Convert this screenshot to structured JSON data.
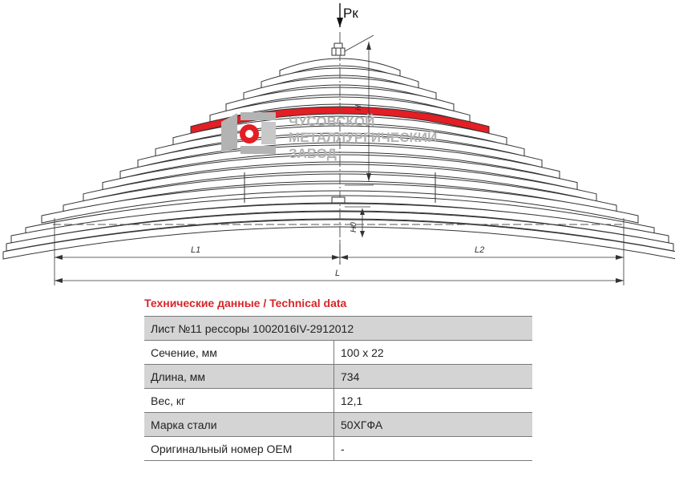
{
  "drawing": {
    "load_label": "Рк",
    "dimension_labels": {
      "l1": "L1",
      "l2": "L2",
      "l": "L",
      "h": "H",
      "h0": "H0"
    },
    "logo": {
      "line1": "ЧУСОВСКОЙ",
      "line2": "МЕТАЛЛУРГИЧЕСКИЙ",
      "line3": "ЗАВОД",
      "icon": "chmz-logo-icon"
    },
    "colors": {
      "highlight_leaf": "#e31e24",
      "line": "#333333",
      "logo_gray": "#b3b3b3",
      "logo_red": "#e31e24"
    }
  },
  "table": {
    "title": "Технические данные / Technical data",
    "header": "Лист №11 рессоры 1002016IV-2912012",
    "rows": [
      {
        "label": "Сечение, мм",
        "value": "100 x 22"
      },
      {
        "label": "Длина, мм",
        "value": "734"
      },
      {
        "label": "Вес, кг",
        "value": "12,1"
      },
      {
        "label": "Марка стали",
        "value": "50ХГФА"
      },
      {
        "label": "Оригинальный номер ОЕМ",
        "value": "-"
      }
    ],
    "colors": {
      "title": "#d7262a",
      "shade": "#d4d4d4"
    }
  }
}
